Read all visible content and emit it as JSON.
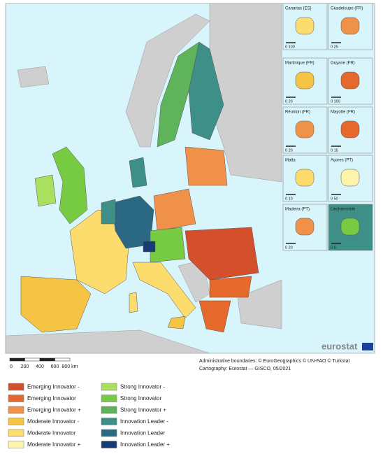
{
  "insets": [
    {
      "name": "Canarias (ES)",
      "scale": "0 100"
    },
    {
      "name": "Guadeloupe (FR)",
      "scale": "0 25"
    },
    {
      "name": "Martinique (FR)",
      "scale": "0 20"
    },
    {
      "name": "Guyane (FR)",
      "scale": "0 100"
    },
    {
      "name": "Réunion (FR)",
      "scale": "0 20"
    },
    {
      "name": "Mayotte (FR)",
      "scale": "0 15"
    },
    {
      "name": "Malta",
      "scale": "0 10"
    },
    {
      "name": "Açores (PT)",
      "scale": "0 50"
    },
    {
      "name": "Madeira (PT)",
      "scale": "0 20"
    },
    {
      "name": "Liechtenstein",
      "scale": "0 5"
    }
  ],
  "logo": "eurostat",
  "scale_bar": [
    "0",
    "200",
    "400",
    "600",
    "800 km"
  ],
  "attribution": [
    "Administrative boundaries: © EuroGeographics © UN-FAO © Turkstat",
    "Cartography: Eurostat — GISCO, 05/2021"
  ],
  "legend": {
    "items": [
      {
        "label": "Emerging Innovator -",
        "color": "#d4502c"
      },
      {
        "label": "Emerging Innovator",
        "color": "#e5692d"
      },
      {
        "label": "Emerging Innovator +",
        "color": "#f0914a"
      },
      {
        "label": "Moderate Innovator -",
        "color": "#f6c444"
      },
      {
        "label": "Moderate Innovator",
        "color": "#fbdc6c"
      },
      {
        "label": "Moderate Innovator +",
        "color": "#fdf3a9"
      },
      {
        "label": "Strong Innovator -",
        "color": "#a9e05e"
      },
      {
        "label": "Strong Innovator",
        "color": "#77cb43"
      },
      {
        "label": "Strong Innovator +",
        "color": "#5fb45b"
      },
      {
        "label": "Innovation Leader -",
        "color": "#3e8f87"
      },
      {
        "label": "Innovation Leader",
        "color": "#2a6884"
      },
      {
        "label": "Innovation Leader +",
        "color": "#163c78"
      }
    ]
  }
}
